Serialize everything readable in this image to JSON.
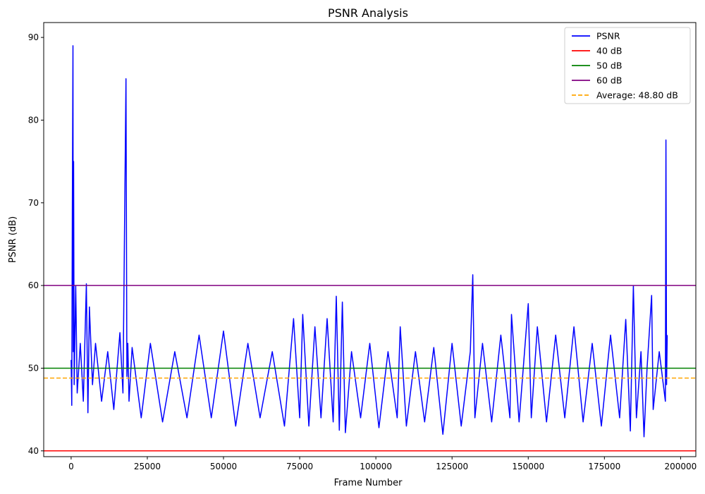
{
  "chart_data": {
    "type": "line",
    "title": "PSNR Analysis",
    "xlabel": "Frame Number",
    "ylabel": "PSNR (dB)",
    "xlim": [
      -9000,
      205000
    ],
    "ylim": [
      39.3,
      91.8
    ],
    "x_ticks": [
      0,
      25000,
      50000,
      75000,
      100000,
      125000,
      150000,
      175000,
      200000
    ],
    "x_tick_labels": [
      "0",
      "25000",
      "50000",
      "75000",
      "100000",
      "125000",
      "150000",
      "175000",
      "200000"
    ],
    "y_ticks": [
      40,
      50,
      60,
      70,
      80,
      90
    ],
    "y_tick_labels": [
      "40",
      "50",
      "60",
      "70",
      "80",
      "90"
    ],
    "grid": false,
    "legend_position": "top-right",
    "series": [
      {
        "name": "PSNR",
        "color": "#0000ff",
        "kind": "line",
        "x": [
          0,
          200,
          400,
          600,
          700,
          800,
          1000,
          1500,
          2000,
          3000,
          4000,
          5000,
          5500,
          6000,
          7000,
          8000,
          10000,
          12000,
          14000,
          16000,
          17000,
          18000,
          18300,
          18600,
          19000,
          20000,
          23000,
          26000,
          30000,
          34000,
          38000,
          42000,
          46000,
          50000,
          54000,
          58000,
          62000,
          66000,
          70000,
          73000,
          75000,
          76000,
          78000,
          80000,
          82000,
          84000,
          86000,
          87000,
          88000,
          89000,
          90000,
          92000,
          95000,
          98000,
          101000,
          104000,
          107000,
          108000,
          110000,
          113000,
          116000,
          119000,
          122000,
          125000,
          128000,
          131000,
          131800,
          132500,
          135000,
          138000,
          141000,
          144000,
          144500,
          147000,
          150000,
          151000,
          153000,
          156000,
          159000,
          162000,
          165000,
          168000,
          171000,
          174000,
          177000,
          180000,
          182000,
          183500,
          184500,
          185500,
          187000,
          188000,
          189000,
          190500,
          191000,
          193000,
          195000,
          195200,
          195400,
          195600
        ],
        "y": [
          51,
          45.5,
          69,
          89,
          52,
          75,
          48,
          60,
          47,
          53,
          46,
          60.2,
          44.6,
          57.4,
          48,
          53,
          46,
          52,
          45,
          54.3,
          47,
          85,
          49,
          53,
          46,
          52.5,
          44,
          53,
          43.5,
          52,
          44,
          54,
          44,
          54.5,
          43,
          53,
          44,
          52,
          43,
          56,
          44,
          56.5,
          43,
          55,
          44,
          56,
          43.5,
          58.7,
          42.5,
          58,
          42.2,
          52,
          44,
          53,
          42.8,
          52,
          44,
          55,
          43,
          52,
          43.5,
          52.5,
          42,
          53,
          43,
          52,
          61.3,
          44,
          53,
          43.5,
          54,
          44,
          56.5,
          43.5,
          57.8,
          44,
          55,
          43.5,
          54,
          44,
          55,
          43.5,
          53,
          43,
          54,
          44,
          55.9,
          42.4,
          60,
          44,
          52,
          41.7,
          50,
          58.8,
          45,
          52,
          46,
          77.6,
          48,
          54
        ]
      },
      {
        "name": "40 dB",
        "color": "#ff0000",
        "kind": "hline",
        "value": 40
      },
      {
        "name": "50 dB",
        "color": "#008000",
        "kind": "hline",
        "value": 50
      },
      {
        "name": "60 dB",
        "color": "#800080",
        "kind": "hline",
        "value": 60
      },
      {
        "name": "Average: 48.80 dB",
        "color": "#ffa500",
        "kind": "hline",
        "value": 48.8,
        "dashed": true
      }
    ]
  }
}
